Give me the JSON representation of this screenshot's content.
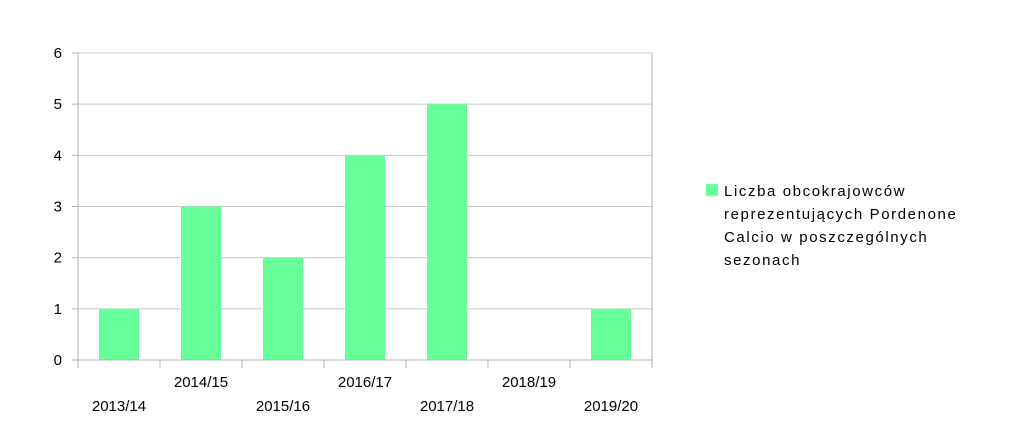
{
  "chart_data": {
    "type": "bar",
    "categories": [
      "2013/14",
      "2014/15",
      "2015/16",
      "2016/17",
      "2017/18",
      "2018/19",
      "2019/20"
    ],
    "series": [
      {
        "name": "Liczba obcokrajowców reprezentujących Pordenone Calcio w poszczególnych sezonach",
        "values": [
          1,
          3,
          2,
          4,
          5,
          0,
          1
        ],
        "color": "#66ff99"
      }
    ],
    "ylim": [
      0,
      6
    ],
    "yticks": [
      0,
      1,
      2,
      3,
      4,
      5,
      6
    ],
    "grid": true,
    "legend_position": "right",
    "title": "",
    "xlabel": "",
    "ylabel": ""
  }
}
